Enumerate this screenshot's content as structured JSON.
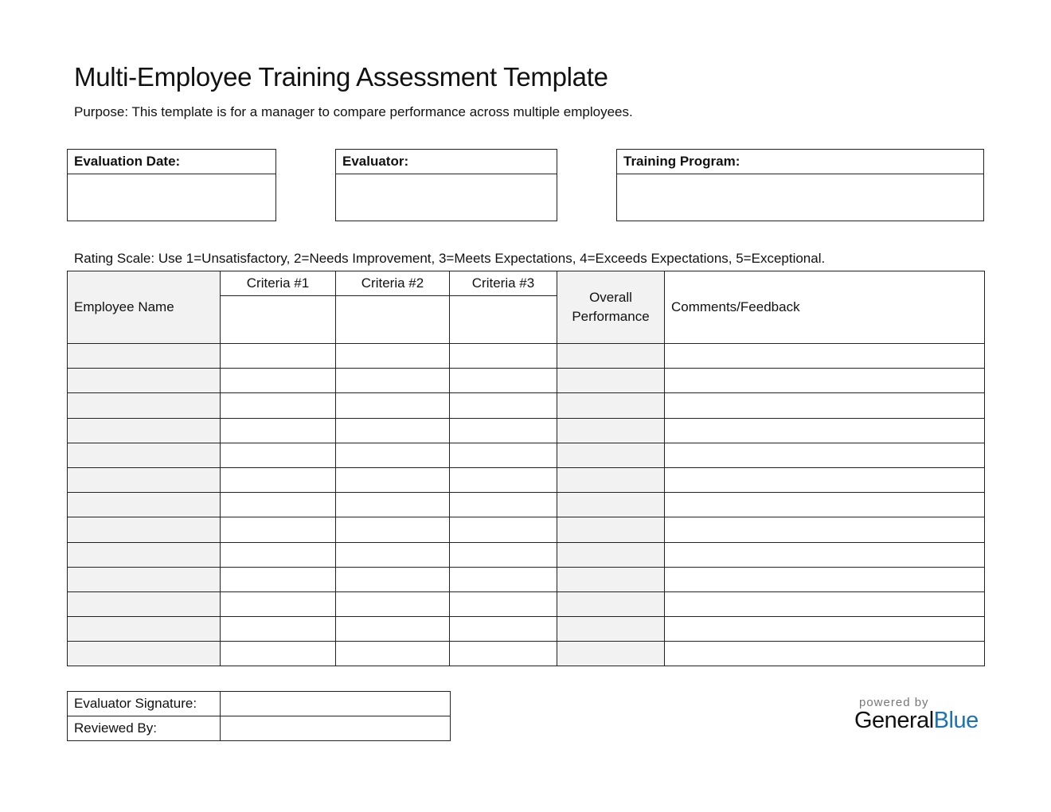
{
  "title": "Multi-Employee Training Assessment Template",
  "purpose": "Purpose: This template is for a manager to compare performance across multiple employees.",
  "info_boxes": [
    {
      "label": "Evaluation Date:",
      "value": ""
    },
    {
      "label": "Evaluator:",
      "value": ""
    },
    {
      "label": "Training Program:",
      "value": ""
    }
  ],
  "rating_scale": "Rating Scale: Use 1=Unsatisfactory, 2=Needs Improvement, 3=Meets Expectations, 4=Exceeds Expectations, 5=Exceptional.",
  "table": {
    "headers": {
      "employee_name": "Employee Name",
      "criteria": [
        "Criteria #1",
        "Criteria #2",
        "Criteria #3"
      ],
      "overall_1": "Overall",
      "overall_2": "Performance",
      "comments": "Comments/Feedback"
    },
    "row_count": 13
  },
  "signature": {
    "evaluator_label": "Evaluator Signature:",
    "reviewed_label": "Reviewed By:"
  },
  "logo": {
    "powered_by": "powered by",
    "general": "General",
    "blue": "Blue",
    "brand_color": "#1a73b8"
  }
}
